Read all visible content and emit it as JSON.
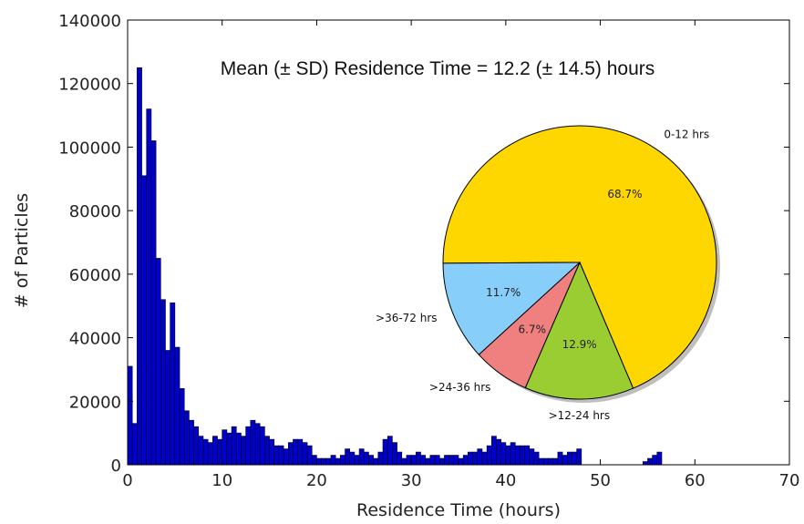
{
  "chart_data": [
    {
      "type": "bar",
      "title": "Mean (± SD) Residence Time = 12.2 (± 14.5) hours",
      "xlabel": "Residence Time (hours)",
      "ylabel": "# of Particles",
      "xlim": [
        0,
        70
      ],
      "ylim": [
        0,
        140000
      ],
      "xticks": [
        "0",
        "10",
        "20",
        "30",
        "40",
        "50",
        "60",
        "70"
      ],
      "yticks": [
        "0",
        "20000",
        "40000",
        "60000",
        "80000",
        "100000",
        "120000",
        "140000"
      ],
      "bin_width": 0.5,
      "bin_start": 0,
      "bar_color": "#0000cc",
      "values": [
        31000,
        13000,
        125000,
        91000,
        112000,
        102000,
        65000,
        52000,
        36000,
        51000,
        37000,
        24000,
        17000,
        14000,
        12000,
        9000,
        8000,
        7000,
        9000,
        8000,
        11000,
        10000,
        12000,
        10000,
        9000,
        12000,
        14000,
        13000,
        12000,
        9000,
        8000,
        6000,
        6000,
        5000,
        7000,
        8000,
        8000,
        7000,
        6000,
        3000,
        2000,
        2000,
        2000,
        3000,
        2000,
        3000,
        5000,
        4000,
        3000,
        5000,
        4000,
        3000,
        2000,
        4000,
        8000,
        9000,
        7000,
        4000,
        2000,
        3000,
        3000,
        4000,
        3000,
        2000,
        3000,
        3000,
        2000,
        3000,
        3000,
        3000,
        2000,
        3000,
        4000,
        4000,
        5000,
        4000,
        6000,
        9000,
        8000,
        7000,
        6000,
        7000,
        6000,
        6000,
        6000,
        5000,
        4000,
        2000,
        2000,
        2000,
        2000,
        4000,
        3000,
        4000,
        4000,
        5000,
        0,
        0,
        0,
        0,
        0,
        0,
        0,
        0,
        0,
        0,
        0,
        0,
        0,
        1000,
        2000,
        3000,
        4000,
        0,
        0,
        0
      ]
    },
    {
      "type": "pie",
      "slices": [
        {
          "label": "0-12 hrs",
          "value": 68.7,
          "pct_label": "68.7%",
          "color": "#ffd700"
        },
        {
          "label": ">36-72 hrs",
          "value": 11.7,
          "pct_label": "11.7%",
          "color": "#87cefa"
        },
        {
          "label": ">24-36 hrs",
          "value": 6.7,
          "pct_label": "6.7%",
          "color": "#f08080"
        },
        {
          "label": ">12-24 hrs",
          "value": 12.9,
          "pct_label": "12.9%",
          "color": "#9acd32"
        }
      ]
    }
  ]
}
